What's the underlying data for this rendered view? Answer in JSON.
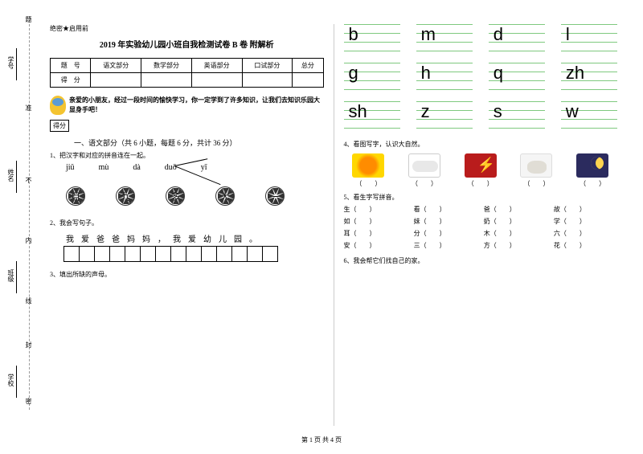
{
  "margin": {
    "labels": [
      "学号",
      "姓名",
      "班级",
      "学校"
    ],
    "marks": [
      "题",
      "准",
      "不",
      "内",
      "线",
      "封",
      "密"
    ]
  },
  "header": "绝密★启用前",
  "title": "2019 年实验幼儿园小班自我检测试卷 B 卷 附解析",
  "score_table": {
    "row1": [
      "题　号",
      "语文部分",
      "数学部分",
      "英语部分",
      "口试部分",
      "总分"
    ],
    "row2": [
      "得　分",
      "",
      "",
      "",
      "",
      ""
    ]
  },
  "intro": "亲爱的小朋友，经过一段时间的愉快学习，你一定学到了许多知识，让我们去知识乐园大显身手吧！",
  "score_label": "得分",
  "section1": "一、语文部分（共 6 小题，每题 6 分，共计 36 分）",
  "q1": "1、把汉字和对应的拼音连在一起。",
  "pinyin": [
    "jiǔ",
    "mù",
    "dà",
    "duō",
    "yī"
  ],
  "sun_chars": [
    "目",
    "九",
    "多",
    "大",
    "一"
  ],
  "q2": "2、我会写句子。",
  "sentence": [
    "我",
    "爱",
    "爸",
    "爸",
    "妈",
    "妈",
    "，",
    "我",
    "爱",
    "幼",
    "儿",
    "园",
    "。"
  ],
  "q3": "3、填出所缺的声母。",
  "letters": {
    "row1": [
      "b",
      "m",
      "d",
      "l"
    ],
    "row2": [
      "g",
      "h",
      "q",
      "zh"
    ],
    "row3": [
      "sh",
      "z",
      "s",
      "w"
    ]
  },
  "q4": "4、看图写字，认识大自然。",
  "nature": [
    "（　　）",
    "（　　）",
    "（　　）",
    "（　　）",
    "（　　）"
  ],
  "q5": "5、看生字写拼音。",
  "chars": [
    "生（　　）",
    "看（　　）",
    "爸（　　）",
    "故（　　）",
    "如（　　）",
    "妹（　　）",
    "奶（　　）",
    "学（　　）",
    "耳（　　）",
    "分（　　）",
    "木（　　）",
    "六（　　）",
    "安（　　）",
    "三（　　）",
    "方（　　）",
    "花（　　）"
  ],
  "q6": "6、我会帮它们找自己的家。",
  "footer": "第 1 页 共 4 页",
  "colors": {
    "line_green": "#7fc97f",
    "sun_orange": "#f59e0b",
    "night": "#2b2b5e",
    "lightning": "#b91c1c"
  }
}
